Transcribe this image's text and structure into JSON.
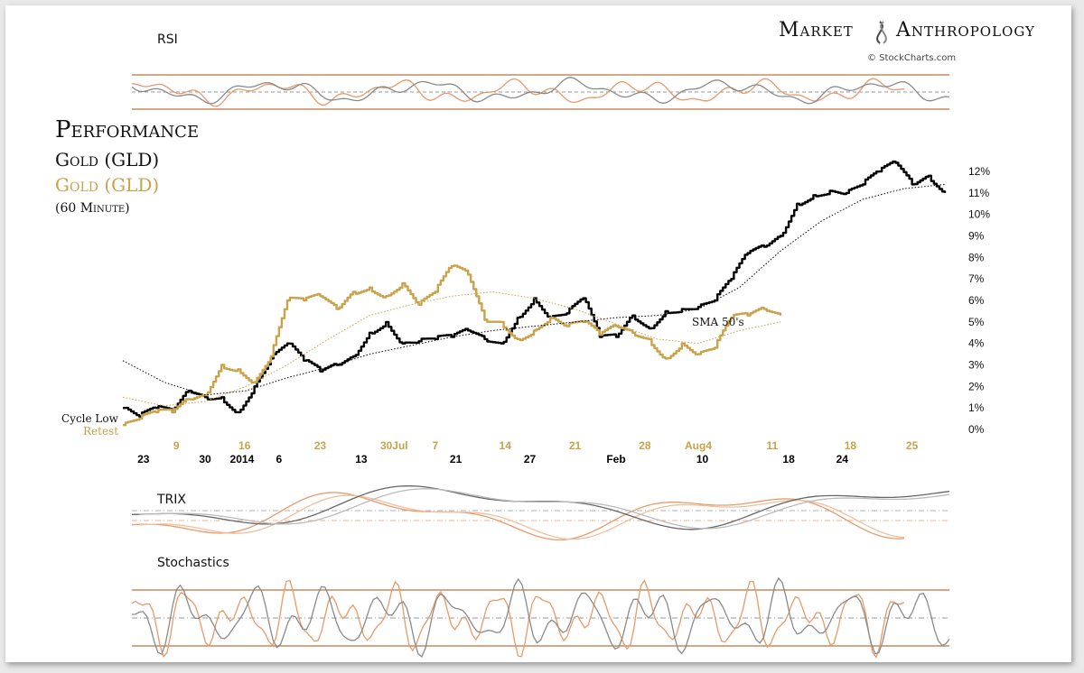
{
  "brand": {
    "left": "Market",
    "right": "Anthropology",
    "credit": "© StockCharts.com"
  },
  "title": {
    "line1": "Performance",
    "line2": "Gold (GLD)",
    "line3": "Gold (GLD)",
    "line4": "(60 Minute)"
  },
  "colors": {
    "black": "#000000",
    "gold": "#c9a24a",
    "orange": "#e79a6a",
    "grey": "#8a8a8a",
    "band": "#b9743e"
  },
  "panels": {
    "rsi": "RSI",
    "trix": "TRIX",
    "stochastics": "Stochastics"
  },
  "annotations": {
    "cycle_low": "Cycle Low",
    "retest": "Retest",
    "sma": "SMA 50's"
  },
  "chart_data": [
    {
      "type": "line",
      "title": "Performance",
      "ylabel": "",
      "ylim": [
        0,
        12.8
      ],
      "y_ticks": [
        "0%",
        "1%",
        "2%",
        "3%",
        "4%",
        "5%",
        "6%",
        "7%",
        "8%",
        "9%",
        "10%",
        "11%",
        "12%"
      ],
      "x_ticks_black": [
        {
          "label": "23",
          "x": 0.025
        },
        {
          "label": "30",
          "x": 0.1
        },
        {
          "label": "2014",
          "x": 0.145
        },
        {
          "label": "6",
          "x": 0.19
        },
        {
          "label": "13",
          "x": 0.29
        },
        {
          "label": "21",
          "x": 0.405
        },
        {
          "label": "27",
          "x": 0.495
        },
        {
          "label": "Feb",
          "x": 0.6
        },
        {
          "label": "10",
          "x": 0.705
        },
        {
          "label": "18",
          "x": 0.81
        },
        {
          "label": "24",
          "x": 0.875
        }
      ],
      "x_ticks_gold": [
        {
          "label": "9",
          "x": 0.065
        },
        {
          "label": "16",
          "x": 0.148
        },
        {
          "label": "23",
          "x": 0.24
        },
        {
          "label": "30Jul",
          "x": 0.33
        },
        {
          "label": "7",
          "x": 0.38
        },
        {
          "label": "14",
          "x": 0.465
        },
        {
          "label": "21",
          "x": 0.55
        },
        {
          "label": "28",
          "x": 0.635
        },
        {
          "label": "Aug4",
          "x": 0.7
        },
        {
          "label": "11",
          "x": 0.79
        },
        {
          "label": "18",
          "x": 0.885
        },
        {
          "label": "25",
          "x": 0.96
        }
      ],
      "series": [
        {
          "name": "Gold (GLD)",
          "style": "black",
          "x": [
            0,
            0.02,
            0.04,
            0.06,
            0.08,
            0.1,
            0.12,
            0.14,
            0.16,
            0.18,
            0.2,
            0.22,
            0.24,
            0.26,
            0.28,
            0.3,
            0.32,
            0.34,
            0.36,
            0.38,
            0.4,
            0.42,
            0.44,
            0.46,
            0.48,
            0.5,
            0.52,
            0.54,
            0.56,
            0.58,
            0.6,
            0.62,
            0.64,
            0.66,
            0.68,
            0.7,
            0.72,
            0.74,
            0.76,
            0.78,
            0.8,
            0.82,
            0.84,
            0.86,
            0.88,
            0.9,
            0.92,
            0.94,
            0.96,
            0.98,
            1.0
          ],
          "values": [
            1.0,
            0.6,
            1.0,
            0.8,
            1.8,
            1.5,
            1.5,
            0.8,
            2.0,
            3.3,
            4.0,
            3.2,
            2.7,
            3.0,
            3.4,
            4.5,
            5.0,
            4.0,
            4.1,
            4.2,
            4.3,
            4.6,
            4.2,
            4.0,
            5.2,
            6.1,
            5.2,
            5.4,
            6.1,
            4.3,
            4.3,
            5.3,
            4.7,
            5.5,
            5.6,
            5.7,
            6.0,
            7.0,
            8.2,
            8.5,
            9.0,
            10.5,
            10.9,
            11.1,
            11.0,
            11.4,
            12.0,
            12.4,
            11.4,
            11.8,
            11.0
          ]
        },
        {
          "name": "Gold (GLD)",
          "style": "gold",
          "x": [
            0,
            0.02,
            0.04,
            0.06,
            0.08,
            0.1,
            0.12,
            0.14,
            0.16,
            0.18,
            0.2,
            0.22,
            0.24,
            0.26,
            0.28,
            0.3,
            0.32,
            0.34,
            0.36,
            0.38,
            0.4,
            0.42,
            0.44,
            0.46,
            0.48,
            0.5,
            0.52,
            0.54,
            0.56,
            0.58,
            0.6,
            0.62,
            0.64,
            0.66,
            0.68,
            0.7,
            0.72,
            0.74,
            0.76,
            0.78,
            0.8
          ],
          "values": [
            0.2,
            0.5,
            0.8,
            0.8,
            1.4,
            1.6,
            3.0,
            2.8,
            2.2,
            3.4,
            6.0,
            6.0,
            6.2,
            5.6,
            6.4,
            6.6,
            6.2,
            6.8,
            5.8,
            6.4,
            7.6,
            7.2,
            5.1,
            5.0,
            4.2,
            4.6,
            5.2,
            4.8,
            5.0,
            4.4,
            4.8,
            4.5,
            4.2,
            3.3,
            4.0,
            3.5,
            3.8,
            5.2,
            5.3,
            5.6,
            5.3
          ]
        },
        {
          "name": "SMA 50's",
          "style": "black-dotted",
          "x": [
            0,
            0.05,
            0.1,
            0.15,
            0.2,
            0.25,
            0.3,
            0.35,
            0.4,
            0.45,
            0.5,
            0.55,
            0.6,
            0.65,
            0.7,
            0.75,
            0.8,
            0.85,
            0.9,
            0.95,
            1.0
          ],
          "values": [
            3.2,
            2.2,
            1.6,
            1.8,
            2.4,
            2.9,
            3.5,
            3.9,
            4.3,
            4.6,
            4.8,
            5.0,
            5.2,
            5.3,
            5.6,
            6.6,
            8.3,
            9.7,
            10.7,
            11.2,
            11.4
          ]
        },
        {
          "name": "SMA 50's",
          "style": "gold-dotted",
          "x": [
            0,
            0.05,
            0.1,
            0.15,
            0.2,
            0.25,
            0.3,
            0.35,
            0.4,
            0.45,
            0.5,
            0.55,
            0.6,
            0.65,
            0.7,
            0.75,
            0.8
          ],
          "values": [
            1.5,
            1.1,
            1.3,
            2.0,
            3.0,
            4.2,
            5.3,
            5.8,
            6.2,
            6.4,
            6.1,
            5.6,
            4.9,
            4.2,
            4.0,
            4.6,
            5.0
          ]
        }
      ]
    }
  ]
}
